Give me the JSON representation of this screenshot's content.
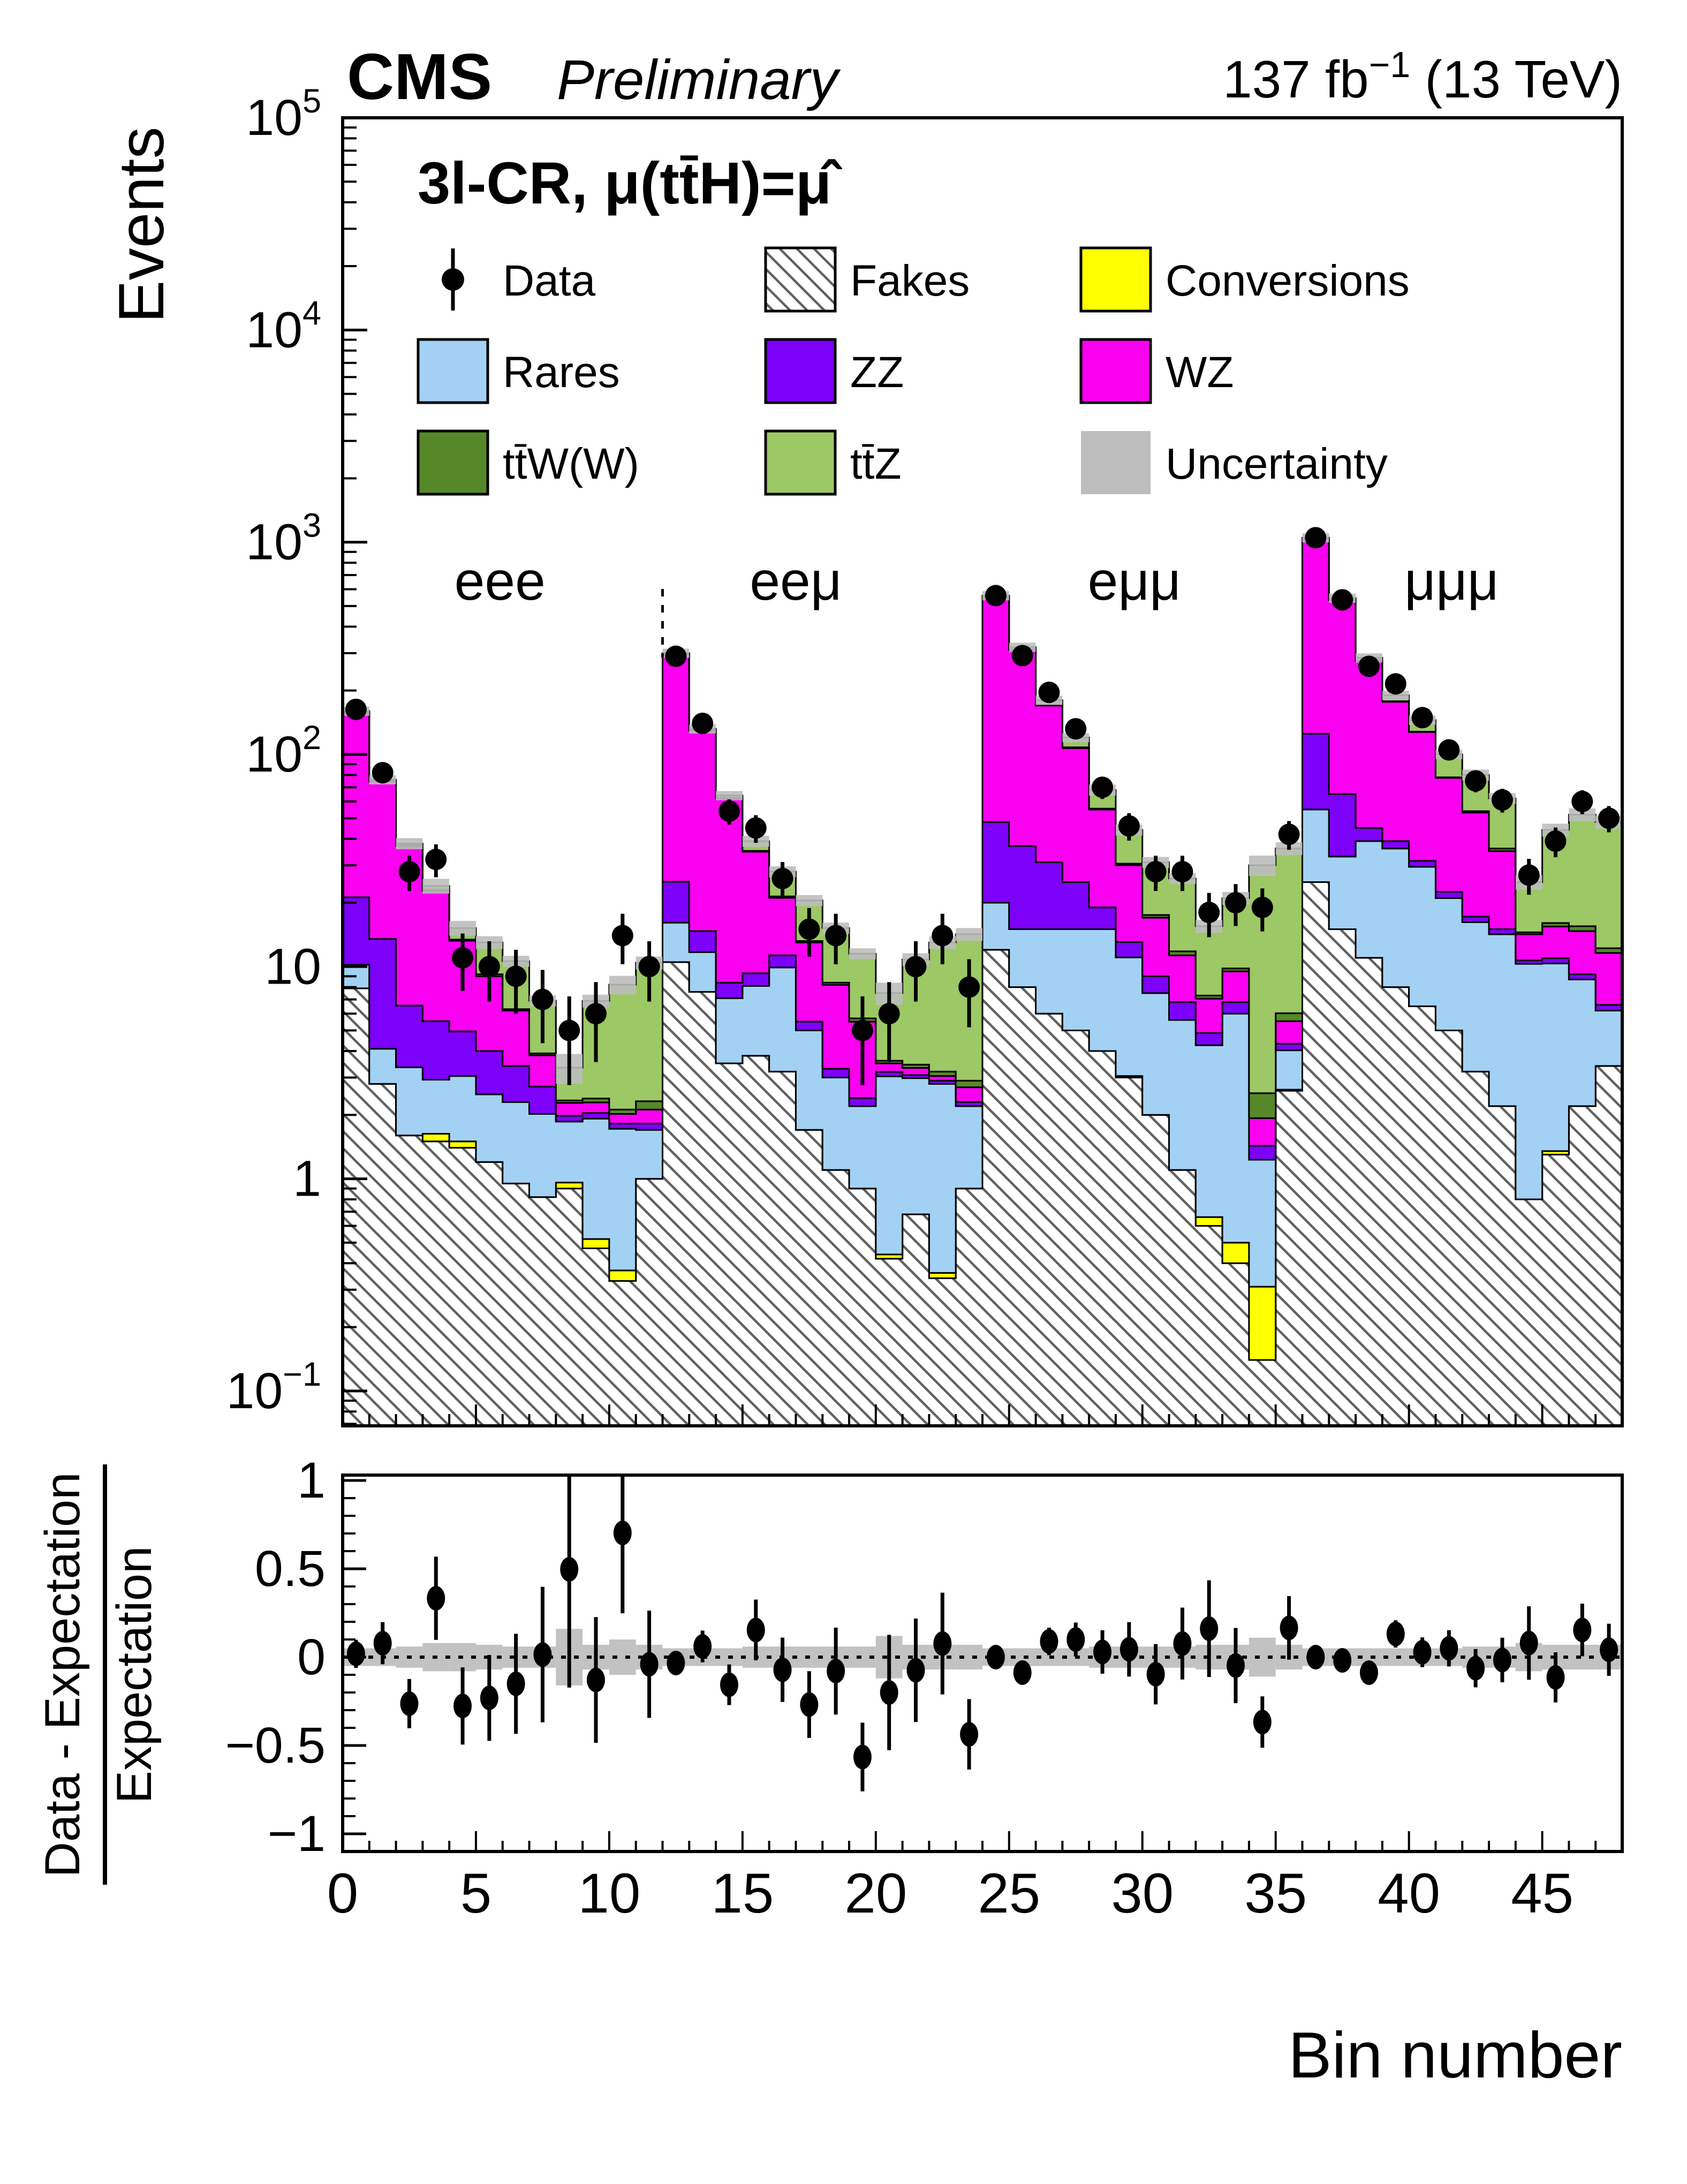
{
  "header": {
    "experiment": "CMS",
    "status": "Preliminary",
    "lumi_prefix": "137 fb",
    "lumi_sup": "-1",
    "lumi_suffix": " (13 TeV)"
  },
  "main_panel": {
    "title": "3l-CR,  μ(tt̄H)=μ̂",
    "ylabel": "Events",
    "region_labels": [
      "eee",
      "eeμ",
      "eμμ",
      "μμμ"
    ]
  },
  "ratio_panel": {
    "ylabel_numerator": "Data - Expectation",
    "ylabel_denominator": "Expectation",
    "xlabel": "Bin number"
  },
  "legend": {
    "entries": [
      {
        "id": "data",
        "label": "Data",
        "type": "marker",
        "color": "#000000"
      },
      {
        "id": "fakes",
        "label": "Fakes",
        "type": "hatch",
        "color": "#ffffff"
      },
      {
        "id": "conversions",
        "label": "Conversions",
        "type": "fill",
        "color": "#ffff00"
      },
      {
        "id": "rares",
        "label": "Rares",
        "type": "fill",
        "color": "#a3d1f4"
      },
      {
        "id": "zz",
        "label": "ZZ",
        "type": "fill",
        "color": "#7d00f9"
      },
      {
        "id": "wz",
        "label": "WZ",
        "type": "fill",
        "color": "#fa00f0"
      },
      {
        "id": "ttw",
        "label": "tt̄W(W)",
        "type": "fill",
        "color": "#568829"
      },
      {
        "id": "ttz",
        "label": "tt̄Z",
        "type": "fill",
        "color": "#9cc865"
      },
      {
        "id": "uncertainty",
        "label": "Uncertainty",
        "type": "fill-noborder",
        "color": "#bdbdbd"
      }
    ]
  },
  "chart_data": {
    "type": "stacked-histogram-log-with-ratio",
    "n_bins": 48,
    "x_range": [
      0,
      48
    ],
    "y_range": [
      0.0685,
      100000
    ],
    "y_decade_ticks": [
      -1,
      0,
      1,
      2,
      3,
      4,
      5
    ],
    "x_major_tick_labels": [
      0,
      5,
      10,
      15,
      20,
      25,
      30,
      35,
      40,
      45
    ],
    "ratio_y_ticks": [
      1,
      0.5,
      0,
      -0.5,
      -1
    ],
    "ratio_y_range": [
      -1,
      1
    ],
    "regions": [
      {
        "label": "eee",
        "first_bin": 0,
        "label_x_bin": 5.9
      },
      {
        "label": "eeμ",
        "first_bin": 12,
        "label_x_bin": 17.0
      },
      {
        "label": "eμμ",
        "first_bin": 24,
        "label_x_bin": 29.7
      },
      {
        "label": "μμμ",
        "first_bin": 36,
        "label_x_bin": 41.6
      }
    ],
    "separator_line_bin": 12,
    "series": [
      {
        "name": "Fakes",
        "style": "hatch",
        "values": [
          7.9,
          2.8,
          1.6,
          1.5,
          1.4,
          1.2,
          0.95,
          0.82,
          0.9,
          0.47,
          0.33,
          1.0,
          10.5,
          7.6,
          3.5,
          3.8,
          3.2,
          1.7,
          1.1,
          0.9,
          0.42,
          0.68,
          0.34,
          0.9,
          12,
          8,
          6,
          5,
          4,
          3,
          2,
          1.1,
          0.6,
          0.4,
          0.14,
          2.6,
          25,
          15,
          11,
          8,
          6.5,
          5,
          3.2,
          2.2,
          0.8,
          1.3,
          2.2,
          3.4
        ]
      },
      {
        "name": "Conversions",
        "style": "conversions",
        "values": [
          0,
          0,
          0,
          0.13,
          0.1,
          0,
          0,
          0,
          0.06,
          0.05,
          0.04,
          0,
          0,
          0,
          0,
          0,
          0,
          0,
          0,
          0,
          0.02,
          0,
          0.02,
          0,
          0,
          0,
          0,
          0,
          0,
          0.05,
          0,
          0,
          0.06,
          0.1,
          0.17,
          0.03,
          0,
          0,
          0,
          0,
          0,
          0,
          0,
          0,
          0,
          0.05,
          0,
          0
        ]
      },
      {
        "name": "Rares",
        "style": "rares",
        "values": [
          2.3,
          1.3,
          1.75,
          1.3,
          1.55,
          1.3,
          1.35,
          1.2,
          0.9,
          1.4,
          1.35,
          0.7,
          5.6,
          4.1,
          3.6,
          4.3,
          6.7,
          3.3,
          1.9,
          1.3,
          2.6,
          2.3,
          2.44,
          1.3,
          8,
          7,
          9,
          10,
          11,
          8,
          5.5,
          4.5,
          3.6,
          5.5,
          0.92,
          1.4,
          30,
          18,
          28,
          28,
          23,
          16,
          13,
          12,
          9.5,
          9,
          6.5,
          2.8
        ]
      },
      {
        "name": "ZZ",
        "style": "zz",
        "values": [
          11,
          9.4,
          3.2,
          2.6,
          1.9,
          1.5,
          1.1,
          0.7,
          0.12,
          0.12,
          0.1,
          0.12,
          9.0,
          3.0,
          1.3,
          1.2,
          1.4,
          0.5,
          0.3,
          0.2,
          0.15,
          0.1,
          0.1,
          0.1,
          28,
          22,
          16,
          10,
          4,
          2,
          1.5,
          1.2,
          0.6,
          0.8,
          0.2,
          0.3,
          70,
          32,
          6,
          3,
          2,
          1.5,
          1.0,
          0.8,
          0.4,
          0.6,
          0.5,
          0.4
        ]
      },
      {
        "name": "WZ",
        "style": "wz",
        "values": [
          136,
          61,
          30.5,
          17.2,
          8.3,
          5.0,
          2.8,
          1.1,
          0.3,
          0.25,
          0.2,
          0.3,
          272.5,
          115,
          53.6,
          25.5,
          9.8,
          7.5,
          4.9,
          3.1,
          0.31,
          0.25,
          0.15,
          0.4,
          502,
          273,
          139,
          82,
          36,
          17,
          8,
          4.5,
          2.2,
          2.7,
          0.5,
          1.2,
          915,
          468,
          230,
          138,
          96,
          55,
          36,
          20,
          3.5,
          4.5,
          5.5,
          5.0
        ]
      },
      {
        "name": "ttW(W)",
        "style": "ttw",
        "values": [
          0.8,
          0.5,
          0.3,
          0.27,
          0.15,
          0.2,
          0.1,
          0.08,
          0.06,
          0.1,
          0.1,
          0.2,
          0.6,
          0.5,
          0.4,
          0.3,
          0.3,
          0.2,
          0.2,
          0.2,
          0.1,
          0.12,
          0.15,
          0.2,
          2,
          2,
          1,
          1,
          0.5,
          0.5,
          0.5,
          0.5,
          0.24,
          0.3,
          0.6,
          0.5,
          2,
          2,
          1,
          1,
          0.5,
          0.5,
          0.8,
          1.0,
          0.3,
          0.6,
          0.8,
          0.6
        ]
      },
      {
        "name": "ttZ",
        "style": "ttz",
        "values": [
          2.0,
          1.0,
          0.65,
          1.0,
          1.8,
          3.8,
          4.3,
          3.0,
          1.0,
          4.5,
          6.1,
          8.1,
          1.8,
          1.8,
          1.6,
          3.9,
          6.6,
          7.3,
          6.8,
          5.8,
          3.9,
          7.35,
          9.8,
          11.3,
          8,
          8,
          9,
          12,
          12.5,
          13.5,
          13.5,
          14.2,
          8.2,
          11.2,
          27.5,
          30,
          8,
          10,
          9,
          12,
          17,
          22,
          26,
          26,
          10.5,
          28,
          36.5,
          35.8
        ]
      }
    ],
    "data_points": [
      163,
      82,
      28,
      32,
      11,
      10,
      9,
      7,
      5,
      6,
      14,
      10,
      290,
      140,
      54,
      45,
      26,
      15,
      14,
      5,
      6,
      10,
      14,
      8,
      560,
      292,
      196,
      132,
      70,
      46,
      28,
      28,
      18,
      20,
      19,
      42,
      1050,
      535,
      260,
      215,
      149,
      105,
      75,
      61,
      27,
      39,
      60,
      50
    ],
    "uncertainty_rel": [
      0.05,
      0.05,
      0.06,
      0.08,
      0.08,
      0.07,
      0.06,
      0.06,
      0.16,
      0.07,
      0.1,
      0.07,
      0.05,
      0.05,
      0.05,
      0.06,
      0.06,
      0.06,
      0.06,
      0.06,
      0.12,
      0.07,
      0.07,
      0.07,
      0.05,
      0.05,
      0.05,
      0.05,
      0.06,
      0.06,
      0.06,
      0.06,
      0.07,
      0.07,
      0.11,
      0.07,
      0.05,
      0.05,
      0.05,
      0.05,
      0.05,
      0.05,
      0.06,
      0.06,
      0.08,
      0.07,
      0.07,
      0.07
    ],
    "colors": {
      "fakes_hatch_line": "#606060",
      "conversions": "#ffff00",
      "rares": "#a3d1f4",
      "zz": "#7d00f9",
      "wz": "#fa00f0",
      "ttw": "#568829",
      "ttz": "#9cc865",
      "uncertainty": "#bdbdbd",
      "data": "#000000"
    }
  }
}
